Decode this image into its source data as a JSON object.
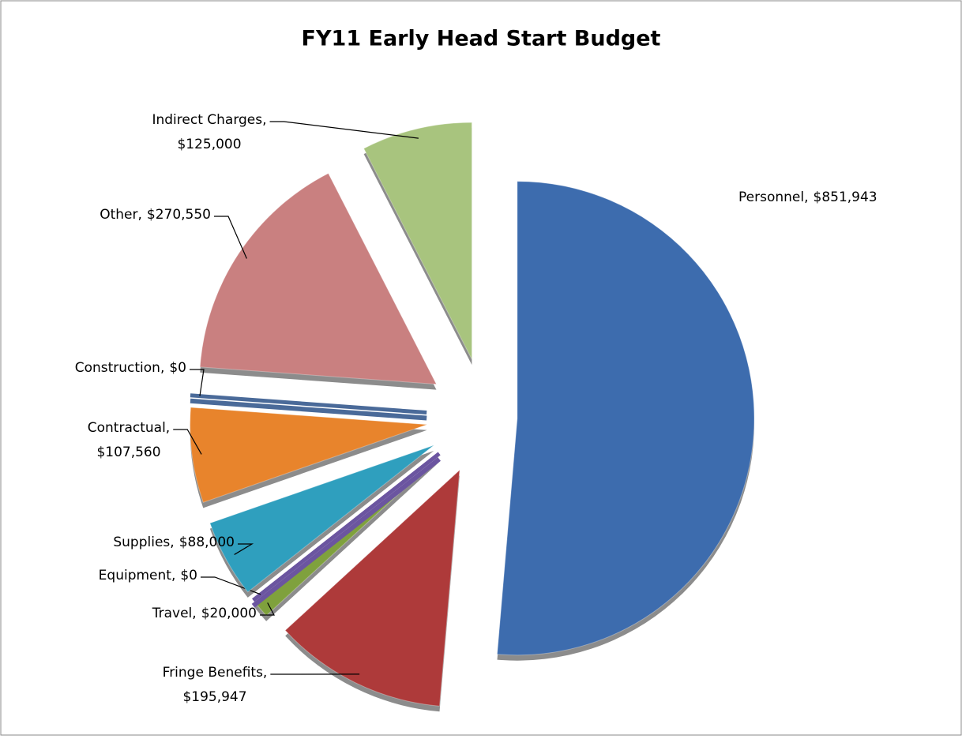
{
  "chart_data": {
    "type": "pie",
    "title": "FY11 Early Head Start Budget",
    "categories": [
      "Personnel,",
      "Fringe Benefits,",
      "Travel,",
      "Equipment,",
      "Supplies,",
      "Contractual,",
      "Construction,",
      "Other,",
      "Indirect Charges,"
    ],
    "values": [
      851943,
      195947,
      20000,
      0,
      88000,
      107560,
      0,
      270550,
      125000
    ],
    "value_labels": [
      "$851,943",
      "$195,947",
      "$20,000",
      "$0",
      "$88,000",
      "$107,560",
      "$0",
      "$270,550",
      "$125,000"
    ],
    "colors": [
      "#3d6cae",
      "#ae3a3a",
      "#7fa13d",
      "#6b55a0",
      "#2f9fbe",
      "#e8842c",
      "#4a6a99",
      "#c98080",
      "#a8c47e"
    ]
  }
}
